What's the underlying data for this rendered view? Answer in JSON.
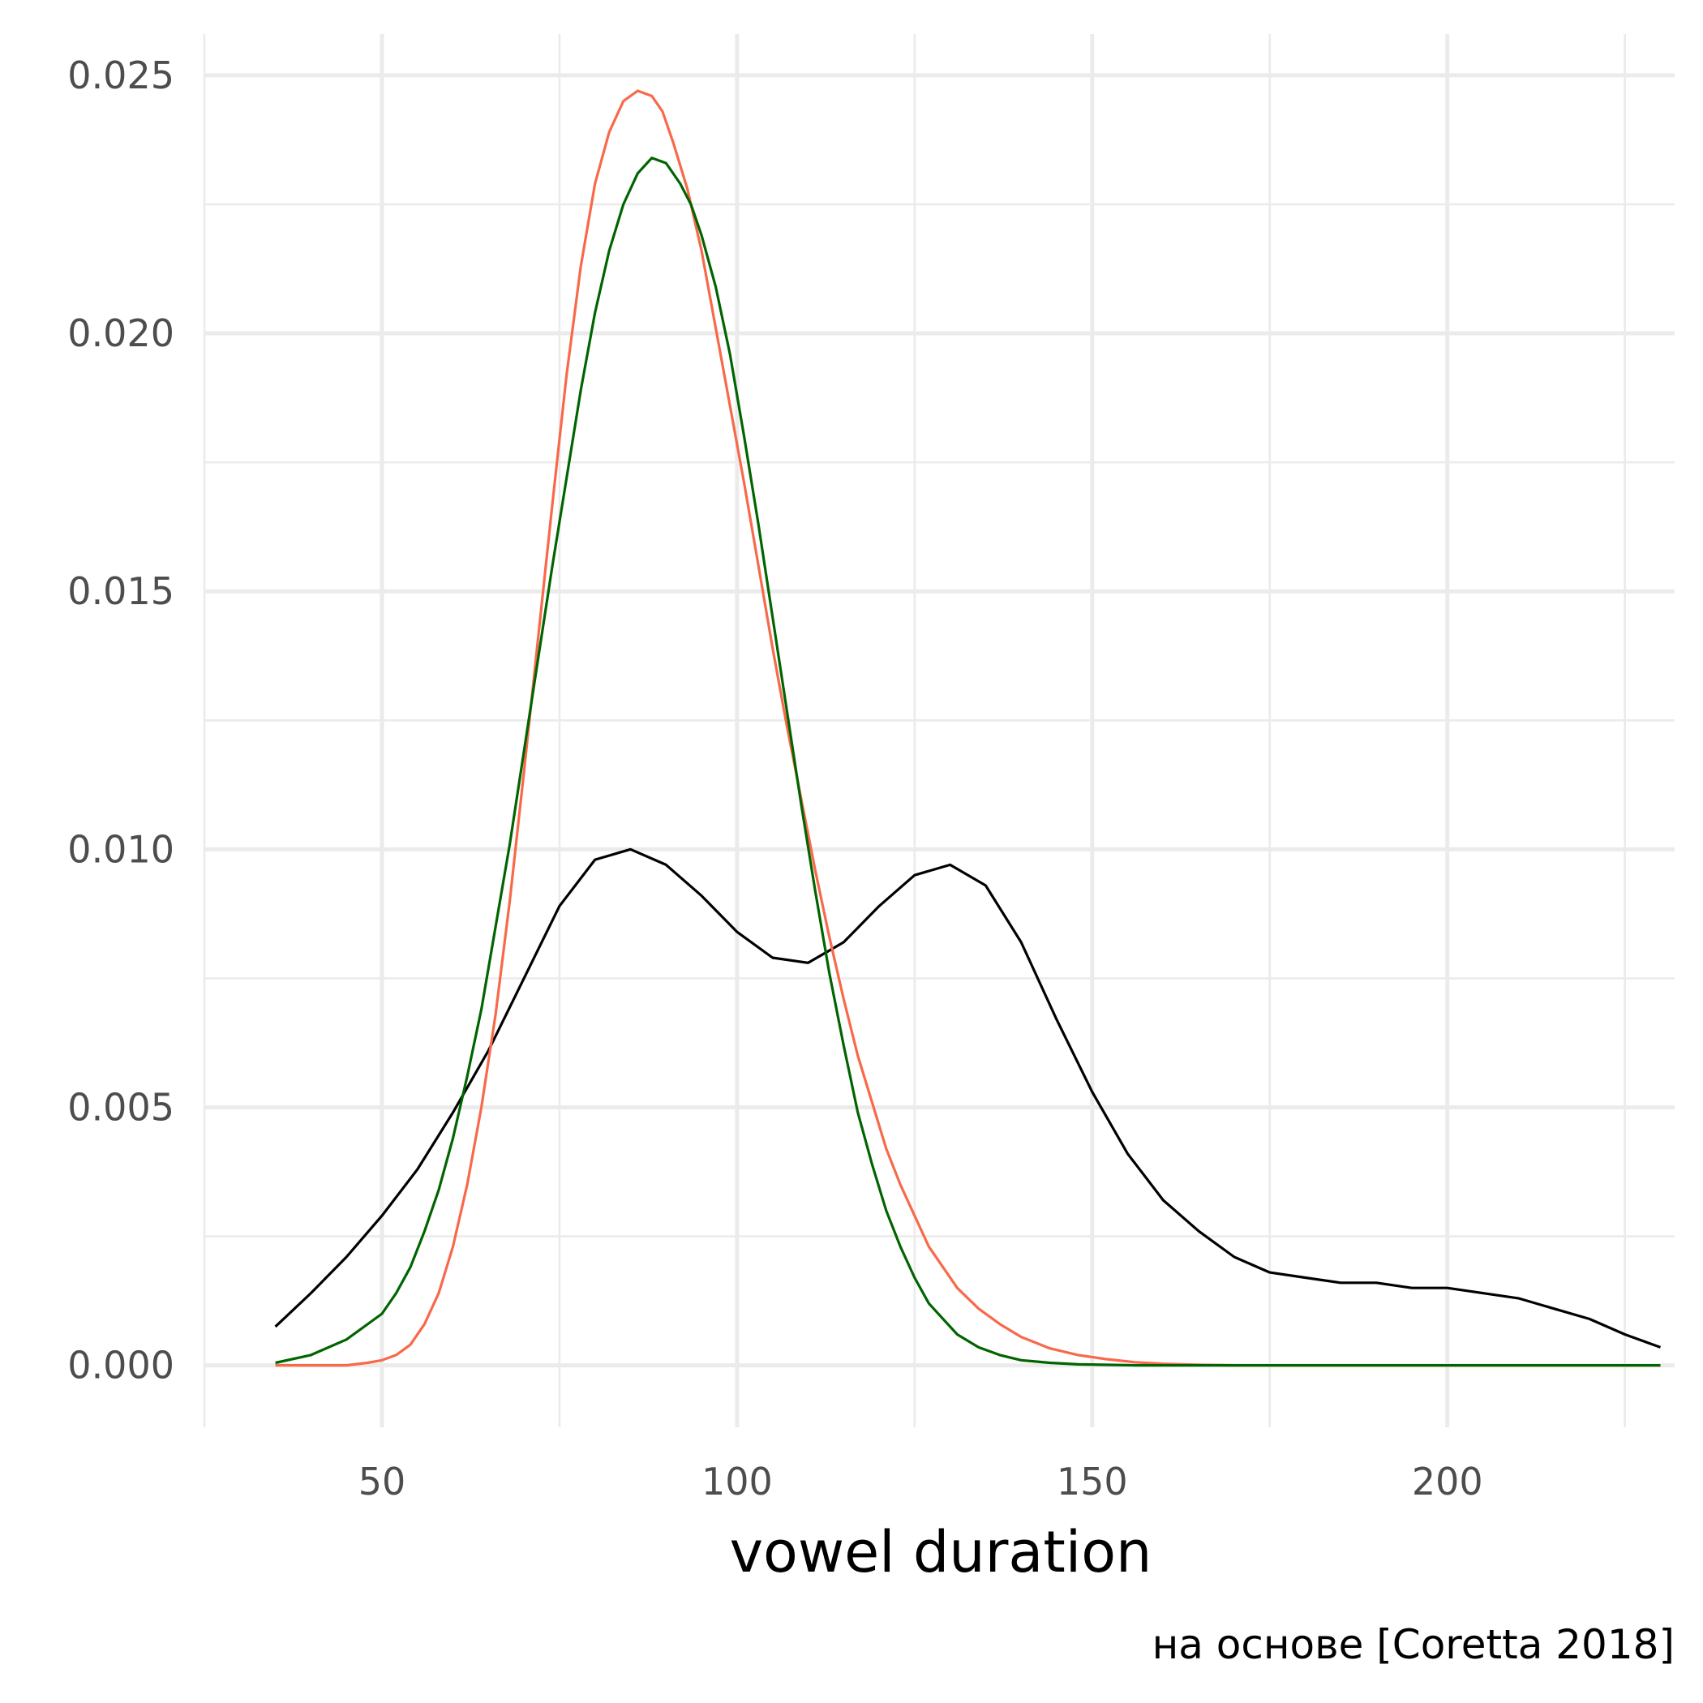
{
  "chart_data": {
    "type": "line",
    "title": "",
    "xlabel": "vowel duration",
    "ylabel": "",
    "caption": "на основе [Coretta 2018]",
    "xlim": [
      25,
      232
    ],
    "ylim": [
      -0.0012,
      0.0258
    ],
    "x_ticks": [
      50,
      100,
      150,
      200
    ],
    "x_tick_labels": [
      "50",
      "100",
      "150",
      "200"
    ],
    "x_minor": [
      25,
      75,
      125,
      175,
      225
    ],
    "y_ticks": [
      0.0,
      0.005,
      0.01,
      0.015,
      0.02,
      0.025
    ],
    "y_tick_labels": [
      "0.000",
      "0.005",
      "0.010",
      "0.015",
      "0.020",
      "0.025"
    ],
    "y_minor": [
      0.0025,
      0.0075,
      0.0125,
      0.0175,
      0.0225
    ],
    "grid": true,
    "legend": "none",
    "series": [
      {
        "color": "#000000",
        "x": [
          35,
          40,
          45,
          50,
          55,
          60,
          65,
          70,
          75,
          80,
          85,
          90,
          95,
          100,
          105,
          110,
          115,
          120,
          125,
          130,
          135,
          140,
          145,
          150,
          155,
          160,
          165,
          170,
          175,
          180,
          185,
          190,
          195,
          200,
          205,
          210,
          215,
          220,
          225,
          230
        ],
        "values": [
          0.00075,
          0.0014,
          0.0021,
          0.0029,
          0.0038,
          0.0049,
          0.0061,
          0.0075,
          0.0089,
          0.0098,
          0.01,
          0.0097,
          0.0091,
          0.0084,
          0.0079,
          0.0078,
          0.0082,
          0.0089,
          0.0095,
          0.0097,
          0.0093,
          0.0082,
          0.0067,
          0.0053,
          0.0041,
          0.0032,
          0.0026,
          0.0021,
          0.0018,
          0.0017,
          0.0016,
          0.0016,
          0.0015,
          0.0015,
          0.0014,
          0.0013,
          0.0011,
          0.0009,
          0.0006,
          0.00035
        ]
      },
      {
        "color": "#f8694a",
        "x": [
          35,
          40,
          45,
          48,
          50,
          52,
          54,
          56,
          58,
          60,
          62,
          64,
          66,
          68,
          70,
          72,
          74,
          76,
          78,
          80,
          82,
          84,
          86,
          88,
          89.5,
          91,
          93,
          95,
          97,
          99,
          101,
          103,
          105,
          107,
          109,
          111,
          113,
          115,
          117,
          119,
          121,
          123,
          125,
          127,
          129,
          131,
          134,
          137,
          140,
          144,
          148,
          152,
          156,
          160,
          165,
          170,
          175,
          180,
          190,
          200,
          210,
          220,
          230
        ],
        "values": [
          0.0,
          0.0,
          0.0,
          5e-05,
          0.0001,
          0.0002,
          0.0004,
          0.0008,
          0.0014,
          0.0023,
          0.0035,
          0.005,
          0.0068,
          0.009,
          0.0115,
          0.0141,
          0.0167,
          0.0192,
          0.0213,
          0.0229,
          0.0239,
          0.0245,
          0.0247,
          0.0246,
          0.0243,
          0.0237,
          0.0228,
          0.0216,
          0.0201,
          0.0186,
          0.0171,
          0.0155,
          0.0139,
          0.0124,
          0.011,
          0.0096,
          0.0083,
          0.0071,
          0.006,
          0.0051,
          0.0042,
          0.0035,
          0.0029,
          0.0023,
          0.0019,
          0.0015,
          0.0011,
          0.0008,
          0.00055,
          0.00033,
          0.0002,
          0.00012,
          6e-05,
          3e-05,
          1e-05,
          0.0,
          0.0,
          0.0,
          0.0,
          0.0,
          0.0,
          0.0,
          0.0
        ]
      },
      {
        "color": "#006400",
        "x": [
          35,
          40,
          45,
          50,
          52,
          54,
          56,
          58,
          60,
          62,
          64,
          66,
          68,
          70,
          72,
          74,
          76,
          78,
          80,
          82,
          84,
          86,
          88,
          90,
          92,
          93.5,
          95,
          97,
          99,
          101,
          103,
          105,
          107,
          109,
          111,
          113,
          115,
          117,
          119,
          121,
          123,
          125,
          127,
          129,
          131,
          134,
          137,
          140,
          144,
          148,
          152,
          156,
          160,
          165,
          170,
          180,
          190,
          200,
          210,
          220,
          230
        ],
        "values": [
          5e-05,
          0.0002,
          0.0005,
          0.001,
          0.0014,
          0.0019,
          0.0026,
          0.0034,
          0.0044,
          0.0056,
          0.0069,
          0.0085,
          0.0101,
          0.0119,
          0.0137,
          0.0155,
          0.0172,
          0.0189,
          0.0204,
          0.0216,
          0.0225,
          0.0231,
          0.0234,
          0.0233,
          0.0229,
          0.0225,
          0.0219,
          0.0209,
          0.0196,
          0.018,
          0.0163,
          0.0145,
          0.0127,
          0.0109,
          0.0092,
          0.0076,
          0.0062,
          0.0049,
          0.0039,
          0.003,
          0.0023,
          0.0017,
          0.0012,
          0.0009,
          0.0006,
          0.00035,
          0.0002,
          0.0001,
          5e-05,
          2e-05,
          1e-05,
          0.0,
          0.0,
          0.0,
          0.0,
          0.0,
          0.0,
          0.0,
          0.0,
          0.0,
          0.0
        ]
      }
    ]
  }
}
